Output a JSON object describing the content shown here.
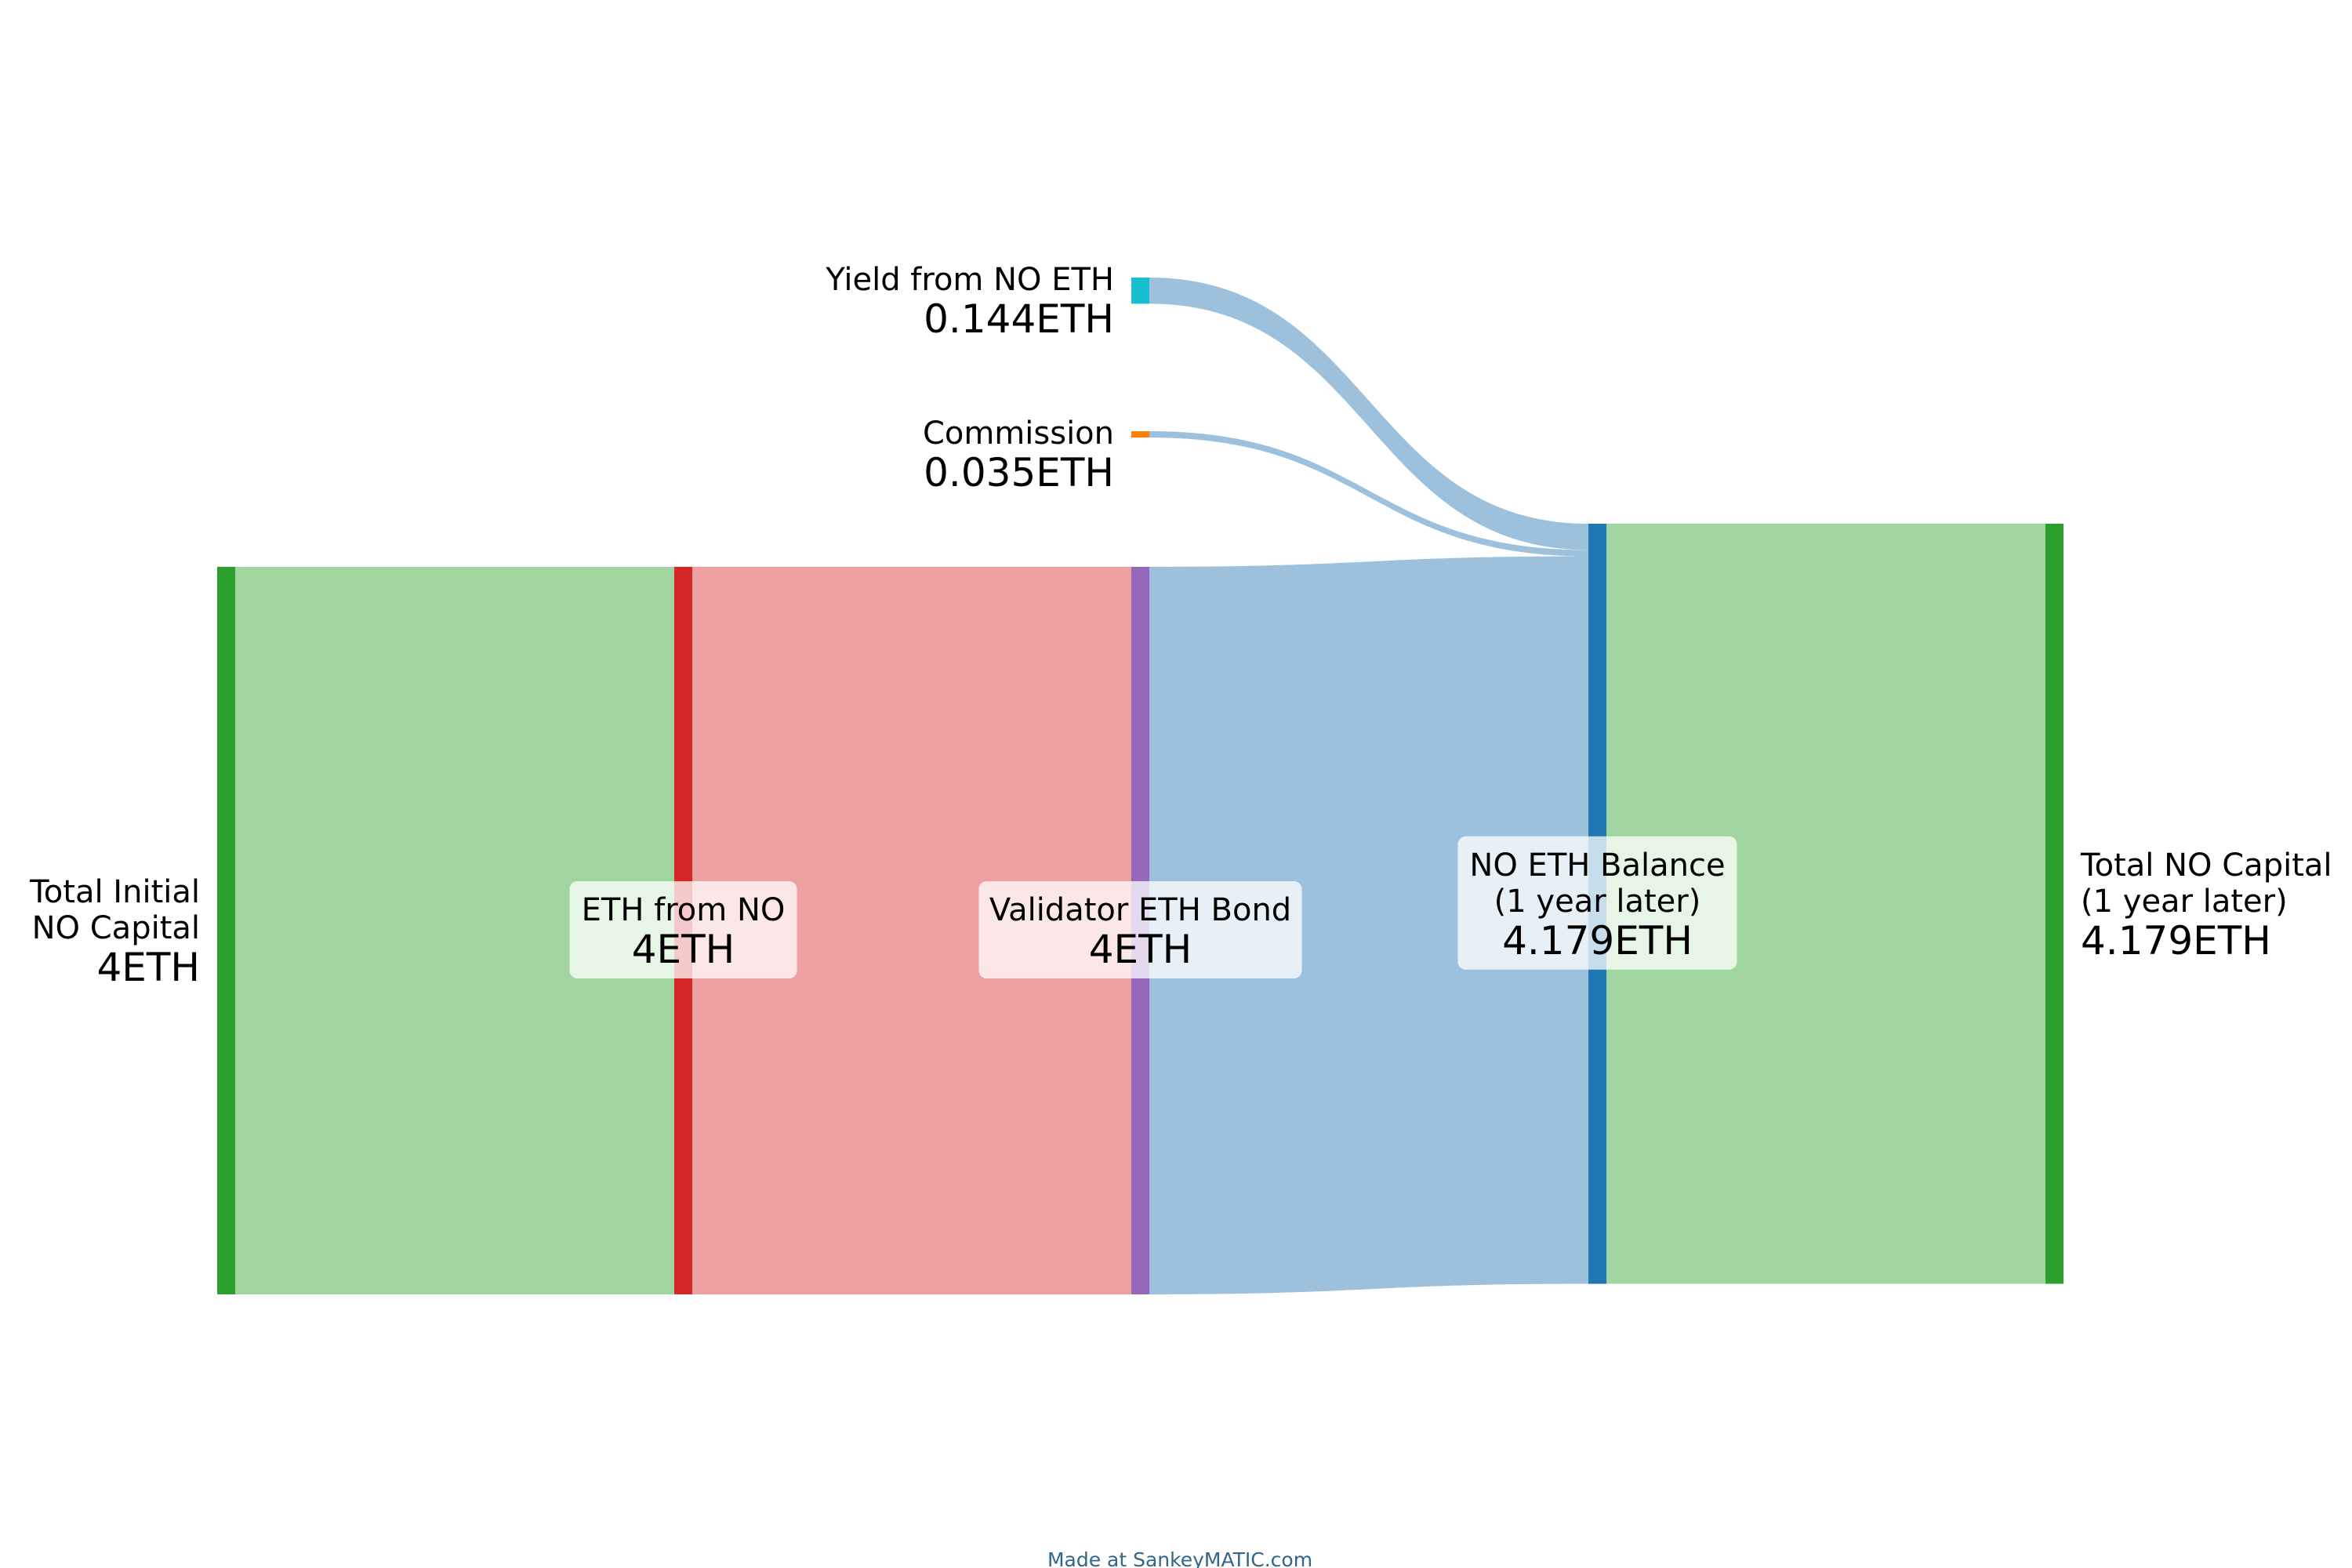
{
  "chart_data": {
    "type": "sankey",
    "unit": "ETH",
    "nodes": [
      {
        "id": "total-initial",
        "label_lines": [
          "Total Initial",
          "NO Capital"
        ],
        "value_text": "4ETH",
        "value": 4,
        "color": "#2ca02c"
      },
      {
        "id": "eth-from-no",
        "label_lines": [
          "ETH from NO"
        ],
        "value_text": "4ETH",
        "value": 4,
        "color": "#d62728"
      },
      {
        "id": "validator-bond",
        "label_lines": [
          "Validator ETH Bond"
        ],
        "value_text": "4ETH",
        "value": 4,
        "color": "#9467bd"
      },
      {
        "id": "yield",
        "label_lines": [
          "Yield from NO ETH"
        ],
        "value_text": "0.144ETH",
        "value": 0.144,
        "color": "#17becf"
      },
      {
        "id": "commission",
        "label_lines": [
          "Commission"
        ],
        "value_text": "0.035ETH",
        "value": 0.035,
        "color": "#ff7f0e"
      },
      {
        "id": "no-eth-balance",
        "label_lines": [
          "NO ETH Balance",
          "(1 year later)"
        ],
        "value_text": "4.179ETH",
        "value": 4.179,
        "color": "#1f77b4"
      },
      {
        "id": "total-no-capital",
        "label_lines": [
          "Total NO Capital",
          "(1 year later)"
        ],
        "value_text": "4.179ETH",
        "value": 4.179,
        "color": "#2ca02c"
      }
    ],
    "flows": [
      {
        "source": "total-initial",
        "target": "eth-from-no",
        "value": 4,
        "color": "#a0d59f"
      },
      {
        "source": "eth-from-no",
        "target": "validator-bond",
        "value": 4,
        "color": "#ed9fa1"
      },
      {
        "source": "validator-bond",
        "target": "no-eth-balance",
        "value": 4,
        "color": "#9dc1dc"
      },
      {
        "source": "yield",
        "target": "no-eth-balance",
        "value": 0.144,
        "color": "#9dc1dc"
      },
      {
        "source": "commission",
        "target": "no-eth-balance",
        "value": 0.035,
        "color": "#9dc1dc"
      },
      {
        "source": "no-eth-balance",
        "target": "total-no-capital",
        "value": 4.179,
        "color": "#a0d59f"
      }
    ]
  },
  "footer": {
    "credit": "Made at SankeyMATIC.com"
  }
}
